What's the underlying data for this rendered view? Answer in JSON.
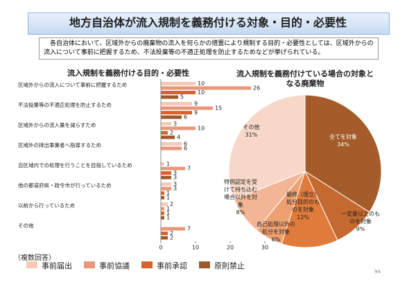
{
  "header": {
    "title": "地方自治体が流入規制を義務付ける対象・目的・必要性",
    "description": "各自治体において、区域外からの廃棄物の流入を何らかの措置により規制する目的・必要性としては、区域外からの流入について事前に把握するため、不法投棄等の不適正処理を防止するためなどが挙げられている。",
    "page_number": "94"
  },
  "chart_data": [
    {
      "type": "hbar",
      "title": "流入規制を義務付ける目的・必要性",
      "annotation": "（複数回答）",
      "categories": [
        "区域外からの流入について事前に把握するため",
        "不法投棄等の不適正処理を防止するため",
        "区域外からの流入量を減らすため",
        "区域外の排出事業者へ指導するため",
        "自区域内での処理を行うことを目指しているため",
        "他の都道府県・政令市が行っているため",
        "以前から行っているため",
        "その他"
      ],
      "series": [
        {
          "name": "事前届出",
          "color": "#f4c9b6",
          "values": [
            10,
            9,
            3,
            6,
            1,
            3,
            2,
            null
          ]
        },
        {
          "name": "事前協議",
          "color": "#e9967a",
          "values": [
            26,
            15,
            10,
            6,
            7,
            3,
            1,
            7
          ]
        },
        {
          "name": "事前承認",
          "color": "#d9622b",
          "values": [
            10,
            9,
            2,
            null,
            3,
            1,
            1,
            2
          ]
        },
        {
          "name": "原則禁止",
          "color": "#9c5a2c",
          "values": [
            5,
            6,
            4,
            null,
            3,
            1,
            1,
            2
          ]
        }
      ],
      "xlim": [
        0,
        30
      ],
      "xticks": [
        0,
        10,
        20,
        30
      ]
    },
    {
      "type": "pie",
      "title": "流入規制を義務付けている場合の対象となる廃棄物",
      "categories": [
        "全てを対象",
        "一定量以上のものを対象",
        "最終（埋立）処分目的のものを対象",
        "自己処理以外の処分を対象",
        "特例認定を受けて持ち込む場合以外を対象",
        "その他"
      ],
      "values": [
        34,
        9,
        12,
        6,
        8,
        31
      ],
      "value_labels": [
        "34%",
        "9%",
        "12%",
        "6%",
        "8%",
        "31%"
      ],
      "colors": [
        "#a55c2a",
        "#c46a30",
        "#e07b3c",
        "#eda070",
        "#f2b595",
        "#f7d8c8"
      ]
    }
  ]
}
